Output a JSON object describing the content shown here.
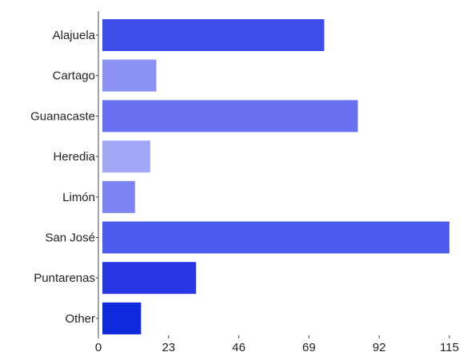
{
  "chart_data": {
    "type": "bar",
    "orientation": "horizontal",
    "categories": [
      "Alajuela",
      "Cartago",
      "Guanacaste",
      "Heredia",
      "Limón",
      "San José",
      "Puntarenas",
      "Other"
    ],
    "values": [
      74,
      19,
      85,
      17,
      12,
      115,
      32,
      14
    ],
    "bar_colors": [
      "#3d4ee8",
      "#8c93f2",
      "#6771ef",
      "#a2a8f5",
      "#7b82f1",
      "#4d5bec",
      "#2637e3",
      "#0f2bde"
    ],
    "xlim": [
      0,
      115
    ],
    "x_ticks": [
      "0",
      "23",
      "46",
      "69",
      "92",
      "115"
    ],
    "grid": false,
    "legend": "none"
  }
}
